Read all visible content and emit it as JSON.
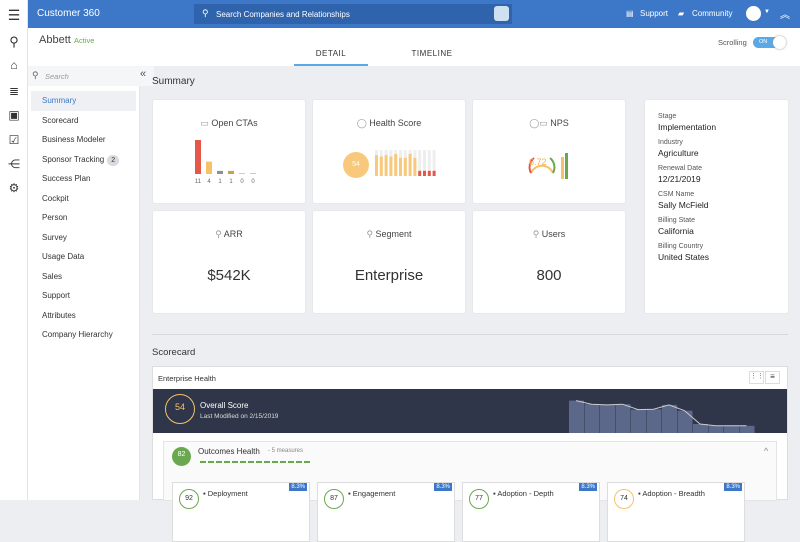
{
  "app": {
    "title": "Customer 360",
    "search_placeholder": "Search Companies and Relationships",
    "support": "Support",
    "community": "Community"
  },
  "company": {
    "name": "Abbett",
    "status": "Active"
  },
  "tabs": [
    {
      "label": "DETAIL",
      "active": true
    },
    {
      "label": "TIMELINE",
      "active": false
    }
  ],
  "scrolling": {
    "label": "Scrolling",
    "toggle": "ON"
  },
  "sidebar": {
    "search_placeholder": "Search",
    "items": [
      {
        "label": "Summary",
        "active": true
      },
      {
        "label": "Scorecard"
      },
      {
        "label": "Business Modeler"
      },
      {
        "label": "Sponsor Tracking",
        "badge": "2"
      },
      {
        "label": "Success Plan"
      },
      {
        "label": "Cockpit"
      },
      {
        "label": "Person"
      },
      {
        "label": "Survey"
      },
      {
        "label": "Usage Data"
      },
      {
        "label": "Sales"
      },
      {
        "label": "Support"
      },
      {
        "label": "Attributes"
      },
      {
        "label": "Company Hierarchy"
      }
    ]
  },
  "summary": {
    "title": "Summary",
    "open_ctas": {
      "title": "Open CTAs",
      "values": [
        11,
        4,
        1,
        1,
        0,
        0
      ],
      "labels": [
        "11",
        "4",
        "1",
        "1",
        "0",
        "0"
      ]
    },
    "health_score": {
      "title": "Health Score",
      "value": "54"
    },
    "nps": {
      "title": "NPS",
      "value": "6.72"
    },
    "arr": {
      "title": "ARR",
      "value": "$542K"
    },
    "segment": {
      "title": "Segment",
      "value": "Enterprise"
    },
    "users": {
      "title": "Users",
      "value": "800"
    },
    "info": [
      {
        "label": "Stage",
        "value": "Implementation"
      },
      {
        "label": "Industry",
        "value": "Agriculture"
      },
      {
        "label": "Renewal Date",
        "value": "12/21/2019"
      },
      {
        "label": "CSM Name",
        "value": "Sally McField"
      },
      {
        "label": "Billing State",
        "value": "California"
      },
      {
        "label": "Billing Country",
        "value": "United States"
      }
    ]
  },
  "scorecard": {
    "title": "Scorecard",
    "panel_title": "Enterprise Health",
    "overall": {
      "label": "Overall Score",
      "score": "54",
      "modified": "Last Modified on 2/15/2019"
    },
    "outcomes": {
      "label": "Outcomes Health",
      "measures": "- 5 measures",
      "score": "82"
    },
    "measures": [
      {
        "name": "Deployment",
        "score": "92",
        "weight": "8.3%",
        "color": "#6aa84f"
      },
      {
        "name": "Engagement",
        "score": "87",
        "weight": "8.3%",
        "color": "#6aa84f"
      },
      {
        "name": "Adoption - Depth",
        "score": "77",
        "weight": "8.3%",
        "color": "#6aa84f"
      },
      {
        "name": "Adoption - Breadth",
        "score": "74",
        "weight": "8.3%",
        "color": "#f5c26b"
      }
    ]
  },
  "colors": {
    "brand": "#3d78c8",
    "dark_band": "#2f3649",
    "red": "#e5574b",
    "orange": "#f5c26b",
    "green": "#6aa84f"
  }
}
